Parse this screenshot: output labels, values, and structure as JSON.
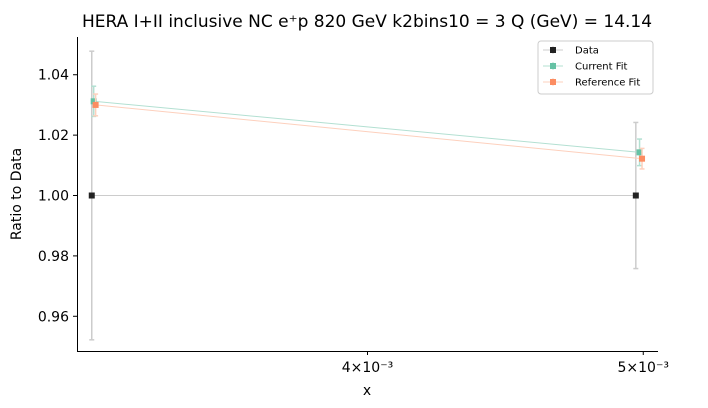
{
  "chart_data": {
    "type": "line",
    "title": "HERA I+II inclusive NC e⁺p 820 GeV k2bins10 = 3 Q (GeV) = 14.14",
    "xlabel": "x",
    "ylabel": "Ratio to Data",
    "xscale": "log",
    "xlim": [
      0.003162,
      0.00506
    ],
    "ylim": [
      0.9485,
      1.0525
    ],
    "x_ticks": [
      {
        "value": 0.004,
        "label": "4×10⁻³"
      },
      {
        "value": 0.005,
        "label": "5×10⁻³"
      }
    ],
    "y_ticks": [
      {
        "value": 0.96,
        "label": "0.96"
      },
      {
        "value": 0.98,
        "label": "0.98"
      },
      {
        "value": 1.0,
        "label": "1.00"
      },
      {
        "value": 1.02,
        "label": "1.02"
      },
      {
        "value": 1.04,
        "label": "1.04"
      }
    ],
    "grid": false,
    "legend_position": "top-right",
    "series": [
      {
        "name": "Data",
        "color": "#222222",
        "error_color": "#cccccc",
        "marker": "square",
        "points": [
          {
            "x": 0.0032,
            "y": 1.0,
            "err": 0.0478
          },
          {
            "x": 0.00497,
            "y": 1.0,
            "err": 0.0242
          }
        ]
      },
      {
        "name": "Current Fit",
        "color": "#66c2a5",
        "error_color": "#b3e0d2",
        "marker": "square",
        "points": [
          {
            "x": 0.003205,
            "y": 1.0312,
            "err": 0.005
          },
          {
            "x": 0.004985,
            "y": 1.0143,
            "err": 0.0044
          }
        ]
      },
      {
        "name": "Reference Fit",
        "color": "#fc8d62",
        "error_color": "#fdd0bd",
        "marker": "square",
        "points": [
          {
            "x": 0.00321,
            "y": 1.03,
            "err": 0.0036
          },
          {
            "x": 0.004995,
            "y": 1.0122,
            "err": 0.0034
          }
        ]
      }
    ]
  }
}
